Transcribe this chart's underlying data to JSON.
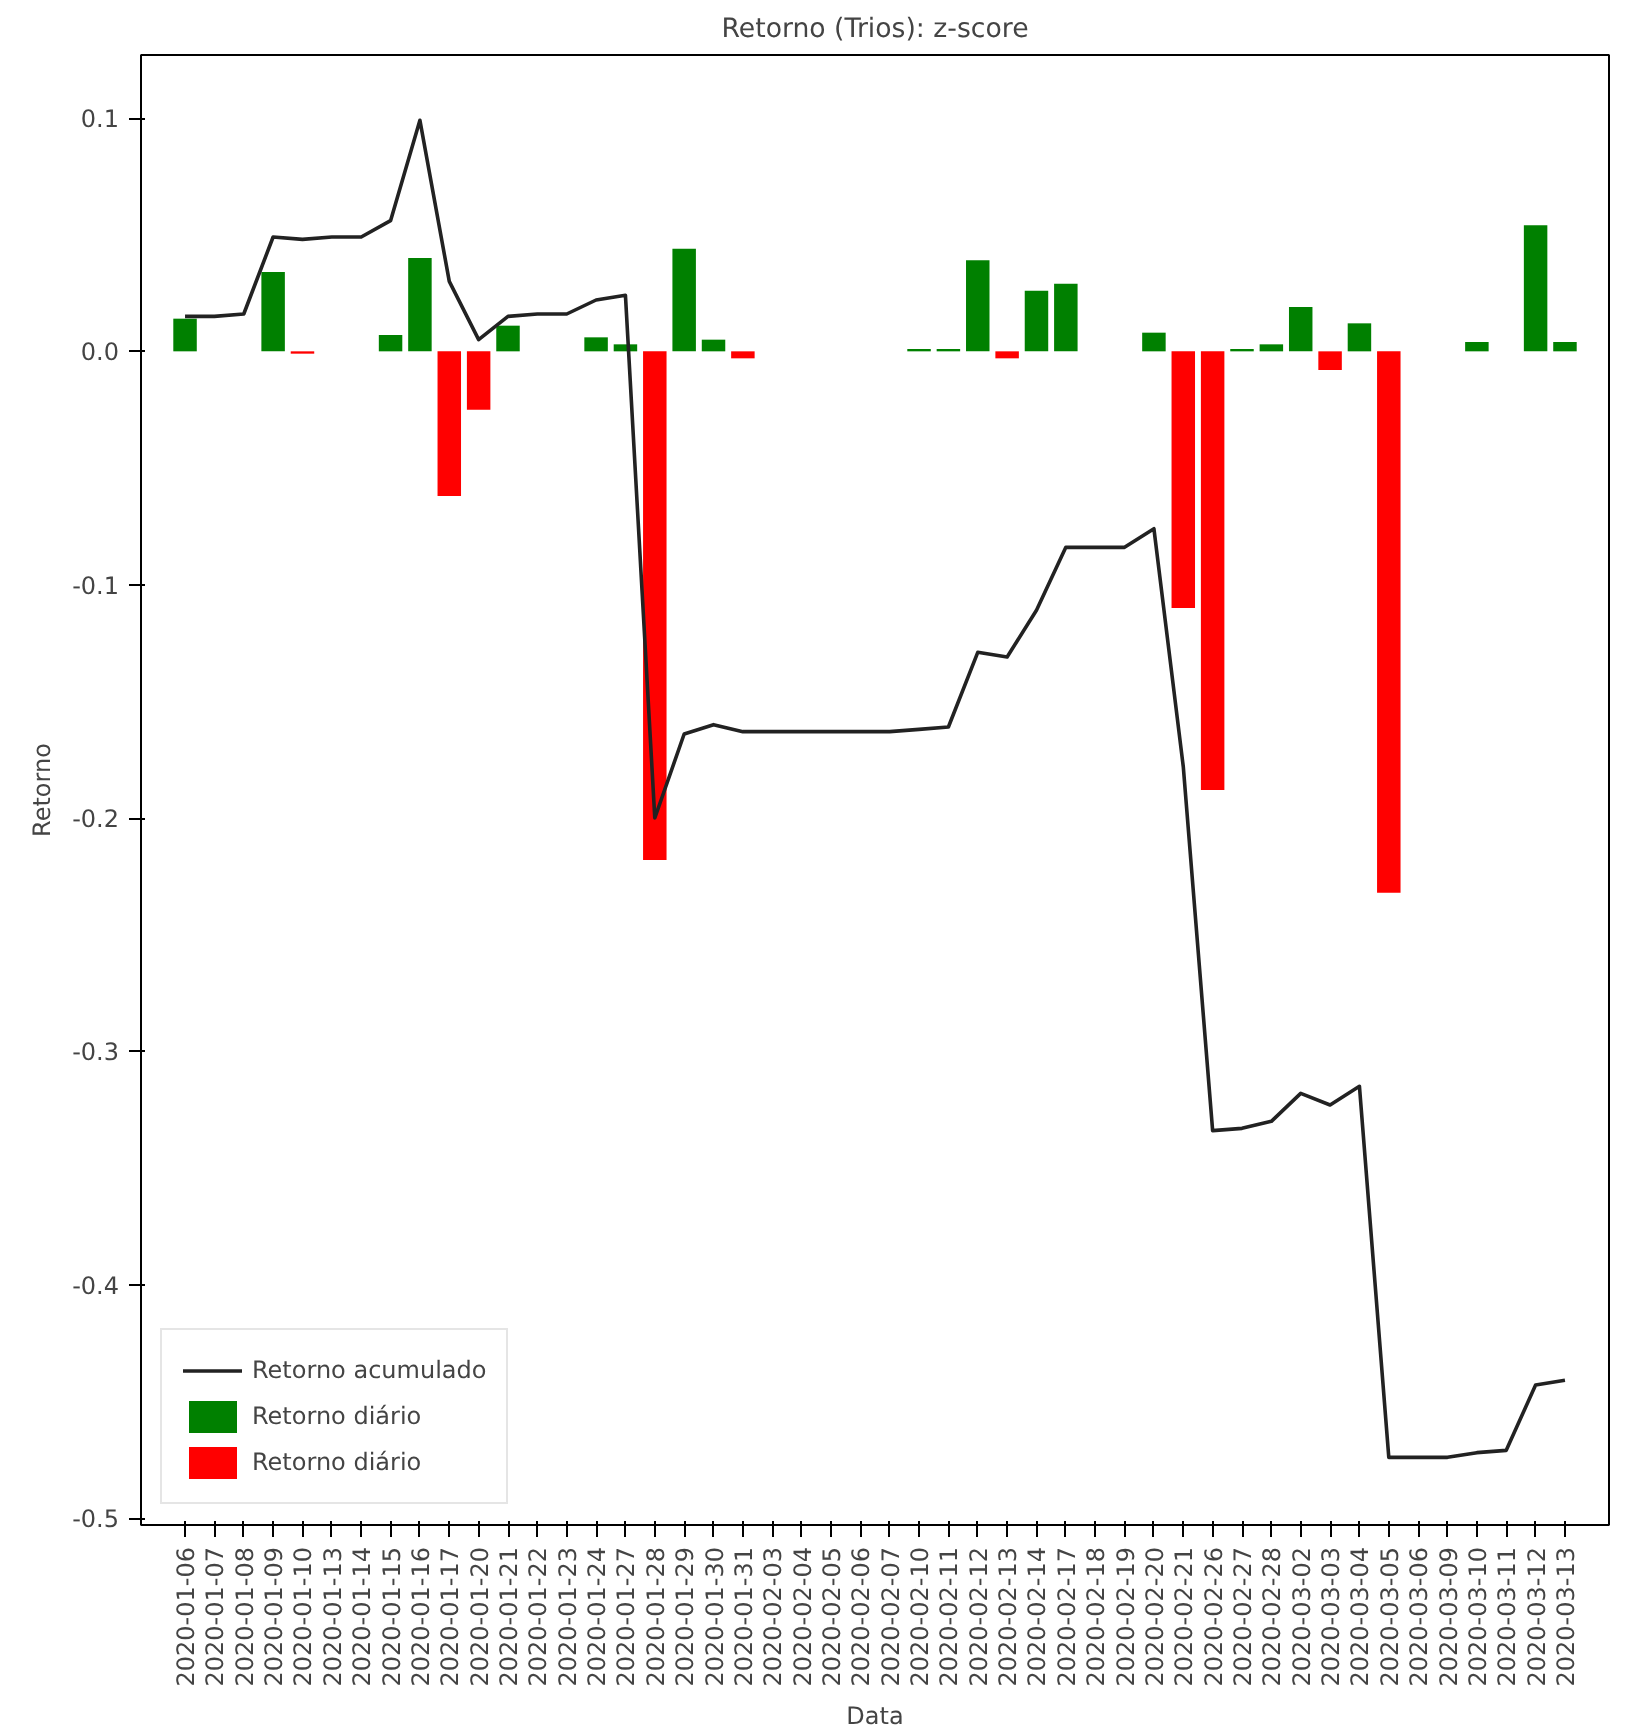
{
  "chart_data": {
    "type": "bar",
    "title": "Retorno (Trios): z-score",
    "xlabel": "Data",
    "ylabel": "Retorno",
    "categories": [
      "2020-01-06",
      "2020-01-07",
      "2020-01-08",
      "2020-01-09",
      "2020-01-10",
      "2020-01-13",
      "2020-01-14",
      "2020-01-15",
      "2020-01-16",
      "2020-01-17",
      "2020-01-20",
      "2020-01-21",
      "2020-01-22",
      "2020-01-23",
      "2020-01-24",
      "2020-01-27",
      "2020-01-28",
      "2020-01-29",
      "2020-01-30",
      "2020-01-31",
      "2020-02-03",
      "2020-02-04",
      "2020-02-05",
      "2020-02-06",
      "2020-02-07",
      "2020-02-10",
      "2020-02-11",
      "2020-02-12",
      "2020-02-13",
      "2020-02-14",
      "2020-02-17",
      "2020-02-18",
      "2020-02-19",
      "2020-02-20",
      "2020-02-21",
      "2020-02-26",
      "2020-02-27",
      "2020-02-28",
      "2020-03-02",
      "2020-03-03",
      "2020-03-04",
      "2020-03-05",
      "2020-03-06",
      "2020-03-09",
      "2020-03-10",
      "2020-03-11",
      "2020-03-12",
      "2020-03-13"
    ],
    "series": [
      {
        "name": "Retorno acumulado",
        "type": "line",
        "color": "#222222",
        "values": [
          0.015,
          0.015,
          0.016,
          0.049,
          0.048,
          0.049,
          0.049,
          0.056,
          0.099,
          0.03,
          0.005,
          0.015,
          0.016,
          0.016,
          0.022,
          0.024,
          -0.2,
          -0.164,
          -0.16,
          -0.163,
          -0.163,
          -0.163,
          -0.163,
          -0.163,
          -0.163,
          -0.162,
          -0.161,
          -0.129,
          -0.131,
          -0.111,
          -0.084,
          -0.084,
          -0.084,
          -0.076,
          -0.178,
          -0.334,
          -0.333,
          -0.33,
          -0.318,
          -0.323,
          -0.315,
          -0.474,
          -0.474,
          -0.474,
          -0.472,
          -0.471,
          -0.443,
          -0.441
        ]
      },
      {
        "name": "Retorno diário",
        "color": "#008000",
        "values": [
          0.014,
          null,
          null,
          0.034,
          null,
          null,
          null,
          0.007,
          0.04,
          null,
          null,
          0.011,
          null,
          null,
          0.006,
          0.003,
          null,
          0.044,
          0.005,
          null,
          null,
          null,
          null,
          null,
          null,
          0.001,
          0.001,
          0.039,
          null,
          0.026,
          0.029,
          null,
          null,
          0.008,
          null,
          null,
          0.001,
          0.003,
          0.019,
          null,
          0.012,
          null,
          null,
          null,
          0.004,
          null,
          0.054,
          0.004
        ]
      },
      {
        "name": "Retorno diário",
        "color": "#ff0000",
        "values": [
          null,
          null,
          null,
          null,
          -0.001,
          null,
          null,
          null,
          null,
          -0.062,
          -0.025,
          null,
          null,
          null,
          null,
          null,
          -0.218,
          null,
          null,
          -0.003,
          null,
          null,
          null,
          null,
          null,
          null,
          null,
          null,
          -0.003,
          null,
          null,
          null,
          null,
          null,
          -0.11,
          -0.188,
          null,
          null,
          null,
          -0.008,
          null,
          -0.232,
          null,
          null,
          null,
          null,
          null,
          null
        ]
      }
    ],
    "ylim": [
      -0.503,
      0.127
    ],
    "yticks": [
      -0.5,
      -0.4,
      -0.3,
      -0.2,
      -0.1,
      {
        "value": 0,
        "label": "0.0"
      },
      0.1
    ],
    "grid": false,
    "legend": "bottom left"
  }
}
